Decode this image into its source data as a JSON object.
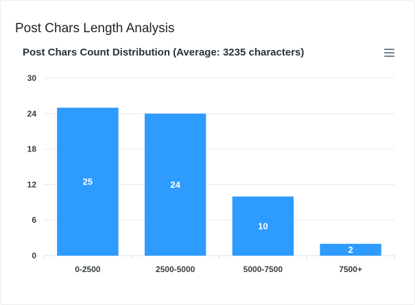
{
  "page": {
    "title": "Post Chars Length Analysis"
  },
  "chart_data": {
    "type": "bar",
    "title": "Post Chars Count Distribution (Average: 3235 characters)",
    "categories": [
      "0-2500",
      "2500-5000",
      "5000-7500",
      "7500+"
    ],
    "values": [
      25,
      24,
      10,
      2
    ],
    "ylim": [
      0,
      30
    ],
    "yticks": [
      0,
      6,
      12,
      18,
      24,
      30
    ],
    "grid": true,
    "data_labels": true,
    "legend": "none",
    "bar_color": "#2e9bfe",
    "menu_icon": "hamburger-menu-icon"
  }
}
